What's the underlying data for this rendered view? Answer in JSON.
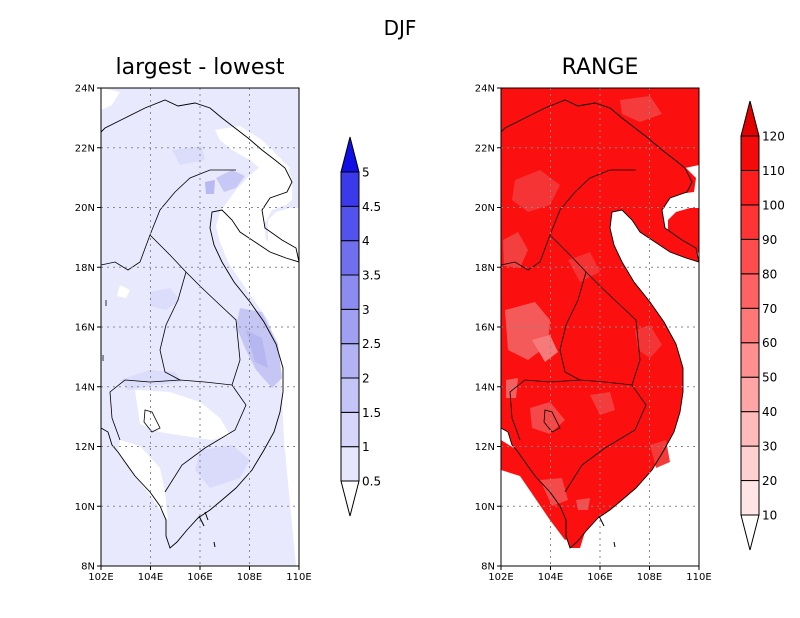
{
  "figure": {
    "title": "DJF"
  },
  "axes": {
    "x_ticks": [
      "102E",
      "104E",
      "106E",
      "108E",
      "110E"
    ],
    "y_ticks": [
      "8N",
      "10N",
      "12N",
      "14N",
      "16N",
      "18N",
      "20N",
      "22N",
      "24N"
    ]
  },
  "panels": [
    {
      "title": "largest - lowest",
      "colorbar": {
        "labels": [
          "0.5",
          "1",
          "1.5",
          "2",
          "2.5",
          "3",
          "3.5",
          "4",
          "4.5",
          "5"
        ],
        "colors": [
          "#ffffff",
          "#e6e6ff",
          "#d6d6fb",
          "#c4c4f7",
          "#b3b3f4",
          "#a0a0f2",
          "#8c8cf0",
          "#7070ee",
          "#5252ec",
          "#3a3aea",
          "#0f0fe6"
        ]
      }
    },
    {
      "title": "RANGE",
      "colorbar": {
        "labels": [
          "10",
          "20",
          "30",
          "40",
          "50",
          "60",
          "70",
          "80",
          "90",
          "100",
          "110",
          "120"
        ],
        "colors": [
          "#ffffff",
          "#ffe5e5",
          "#ffd0d0",
          "#ffbaba",
          "#ffa5a5",
          "#ff9090",
          "#ff7878",
          "#ff6262",
          "#ff4c4c",
          "#ff3434",
          "#ff1d1d",
          "#f50a0a",
          "#e30000"
        ]
      }
    }
  ]
}
